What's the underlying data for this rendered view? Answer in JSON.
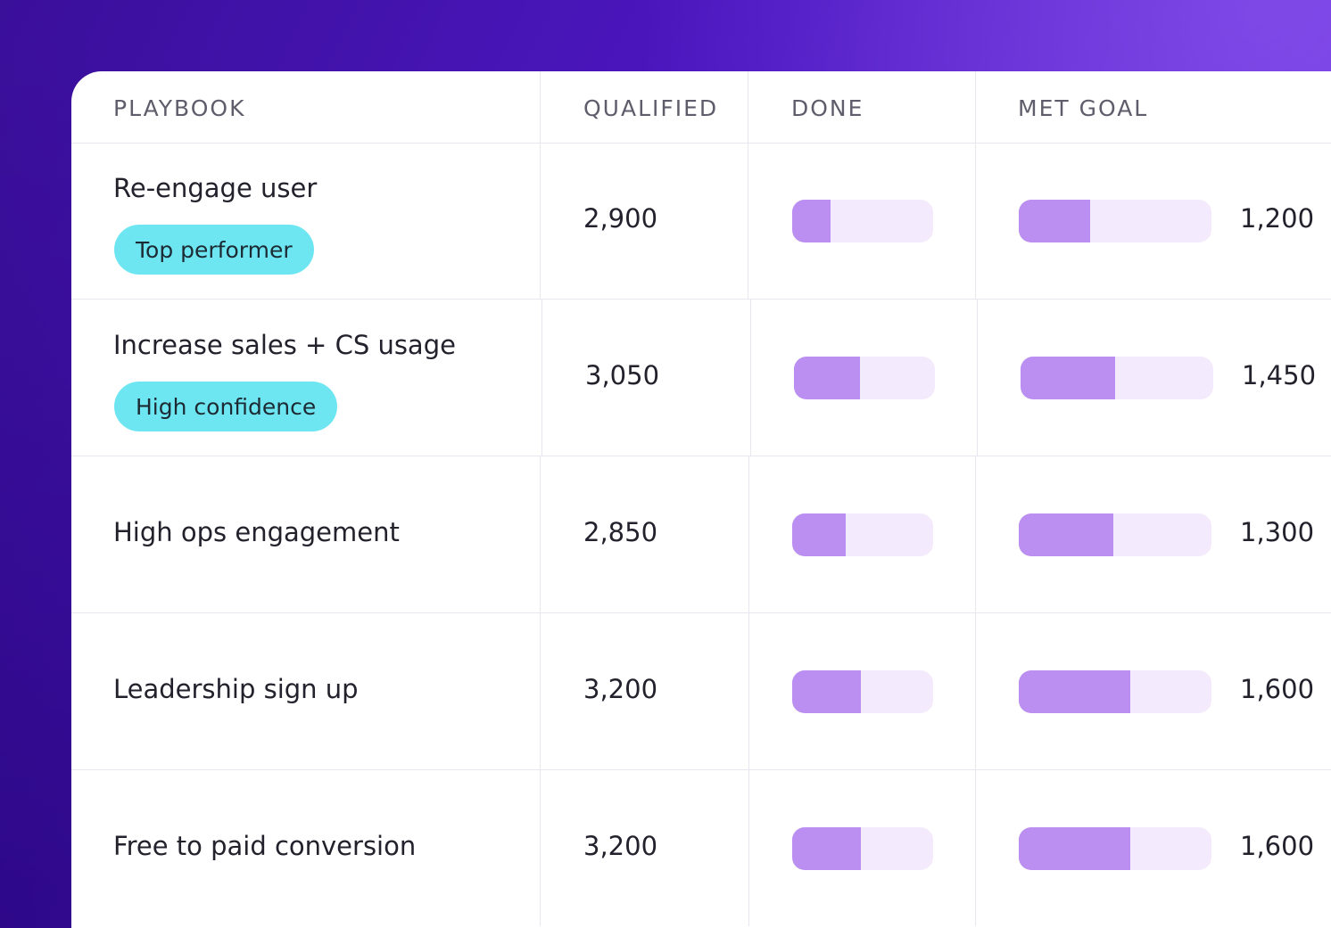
{
  "table": {
    "headers": {
      "playbook": "PLAYBOOK",
      "qualified": "QUALIFIED",
      "done": "DONE",
      "met_goal": "MET GOAL"
    },
    "rows": [
      {
        "name": "Re-engage user",
        "badge": "Top performer",
        "qualified": "2,900",
        "done_progress": 0.27,
        "met_goal_progress": 0.37,
        "met_goal": "1,200"
      },
      {
        "name": "Increase sales + CS usage",
        "badge": "High confidence",
        "qualified": "3,050",
        "done_progress": 0.47,
        "met_goal_progress": 0.49,
        "met_goal": "1,450"
      },
      {
        "name": "High ops engagement",
        "badge": "",
        "qualified": "2,850",
        "done_progress": 0.38,
        "met_goal_progress": 0.49,
        "met_goal": "1,300"
      },
      {
        "name": "Leadership sign up",
        "badge": "",
        "qualified": "3,200",
        "done_progress": 0.49,
        "met_goal_progress": 0.58,
        "met_goal": "1,600"
      },
      {
        "name": "Free to paid conversion",
        "badge": "",
        "qualified": "3,200",
        "done_progress": 0.49,
        "met_goal_progress": 0.58,
        "met_goal": "1,600"
      }
    ]
  },
  "colors": {
    "bar_fill": "#bb8ff1",
    "bar_track": "#f3ebfd",
    "badge": "#6ee6f2",
    "background_start": "#3a0f9a",
    "background_end": "#7a3ee6"
  }
}
